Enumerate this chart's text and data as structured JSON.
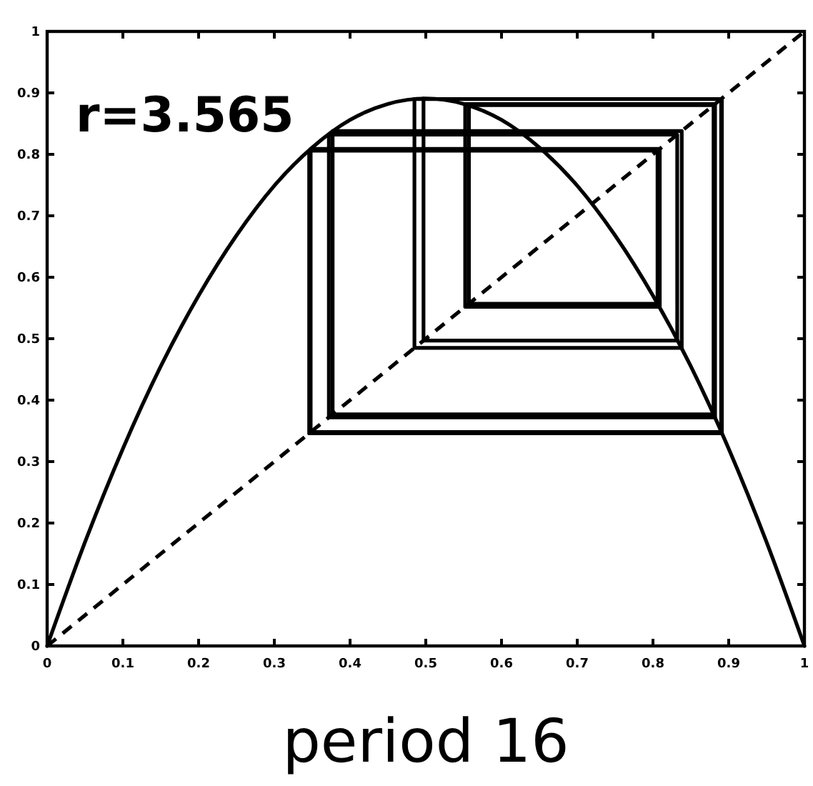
{
  "chart_data": {
    "type": "line",
    "xlabel": "period 16",
    "annotations": [
      "r=3.565"
    ],
    "xlim": [
      0,
      1
    ],
    "ylim": [
      0,
      1
    ],
    "xticks": [
      0,
      0.1,
      0.2,
      0.3,
      0.4,
      0.5,
      0.6,
      0.7,
      0.8,
      0.9,
      1
    ],
    "yticks": [
      0,
      0.1,
      0.2,
      0.3,
      0.4,
      0.5,
      0.6,
      0.7,
      0.8,
      0.9,
      1
    ],
    "series": [
      {
        "color": "#000000",
        "x": [
          0,
          0.05,
          0.1,
          0.15,
          0.2,
          0.25,
          0.3,
          0.35,
          0.4,
          0.45,
          0.5,
          0.55,
          0.6,
          0.65,
          0.7,
          0.75,
          0.8,
          0.85,
          0.9,
          0.95,
          1
        ],
        "values": [
          0,
          0.169,
          0.321,
          0.455,
          0.57,
          0.668,
          0.749,
          0.811,
          0.856,
          0.882,
          0.891,
          0.882,
          0.856,
          0.811,
          0.749,
          0.668,
          0.57,
          0.455,
          0.321,
          0.169,
          0
        ]
      },
      {
        "color": "#000000",
        "line_style": "dashed",
        "x": [
          0,
          1
        ],
        "values": [
          0,
          1
        ]
      },
      {
        "color": "#000000",
        "x": [
          0.891,
          0.891,
          0.346,
          0.346,
          0.806,
          0.806,
          0.557,
          0.557,
          0.88,
          0.88,
          0.377,
          0.377,
          0.838,
          0.838,
          0.485,
          0.485,
          0.89,
          0.89,
          0.348,
          0.348,
          0.809,
          0.809,
          0.552,
          0.552,
          0.882,
          0.882,
          0.372,
          0.372,
          0.832,
          0.832,
          0.497,
          0.497
        ],
        "values": [
          0.891,
          0.346,
          0.346,
          0.806,
          0.806,
          0.557,
          0.557,
          0.88,
          0.88,
          0.377,
          0.377,
          0.838,
          0.838,
          0.485,
          0.485,
          0.89,
          0.89,
          0.348,
          0.348,
          0.809,
          0.809,
          0.552,
          0.552,
          0.882,
          0.882,
          0.372,
          0.372,
          0.832,
          0.832,
          0.497,
          0.497,
          0.891
        ]
      }
    ]
  }
}
